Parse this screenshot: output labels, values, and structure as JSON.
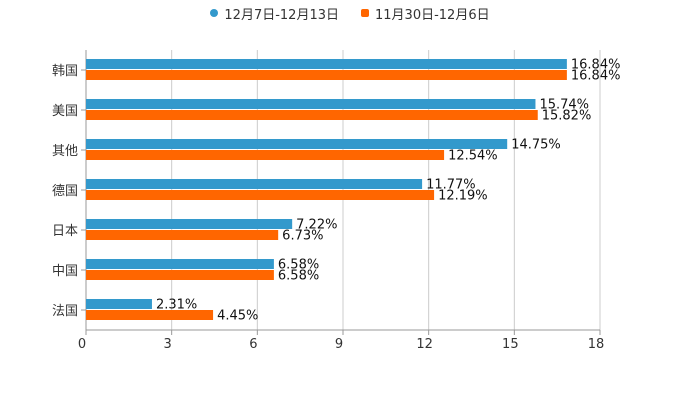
{
  "chart_data": {
    "type": "bar",
    "orientation": "horizontal",
    "categories": [
      "韩国",
      "美国",
      "其他",
      "德国",
      "日本",
      "中国",
      "法国"
    ],
    "series": [
      {
        "name": "12月7日-12月13日",
        "color": "#3399cc",
        "values": [
          16.84,
          15.74,
          14.75,
          11.77,
          7.22,
          6.58,
          2.31
        ],
        "labels": [
          "16.84%",
          "15.74%",
          "14.75%",
          "11.77%",
          "7.22%",
          "6.58%",
          "2.31%"
        ]
      },
      {
        "name": "11月30日-12月6日",
        "color": "#ff6600",
        "values": [
          16.84,
          15.82,
          12.54,
          12.19,
          6.73,
          6.58,
          4.45
        ],
        "labels": [
          "16.84%",
          "15.82%",
          "12.54%",
          "12.19%",
          "6.73%",
          "6.58%",
          "4.45%"
        ]
      }
    ],
    "xlim": [
      0,
      18
    ],
    "xticks": [
      "0",
      "3",
      "6",
      "9",
      "12",
      "15",
      "18"
    ],
    "legend_position": "top-center",
    "grid": true
  }
}
